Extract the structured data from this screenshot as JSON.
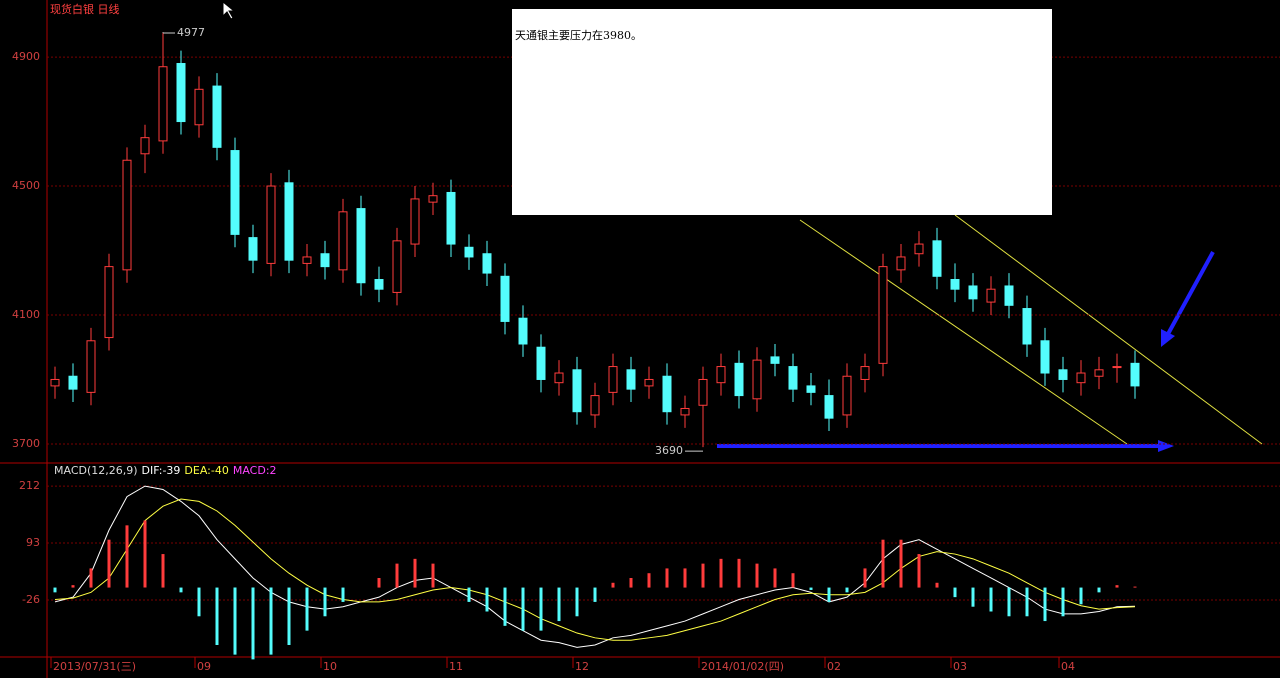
{
  "chart_data": [
    {
      "type": "candlestick",
      "title": "现货白银  日线",
      "categories": [
        "2013/07/31(三)",
        null,
        null,
        null,
        null,
        null,
        null,
        null,
        "09",
        null,
        null,
        null,
        null,
        null,
        null,
        "10",
        null,
        null,
        null,
        null,
        null,
        null,
        "11",
        null,
        null,
        null,
        null,
        null,
        null,
        "12",
        null,
        null,
        null,
        null,
        null,
        null,
        "2014/01/02(四)",
        null,
        null,
        null,
        null,
        null,
        null,
        "02",
        null,
        null,
        null,
        null,
        null,
        null,
        "03",
        null,
        null,
        null,
        null,
        null,
        "04",
        null,
        null,
        null,
        null
      ],
      "open": [
        3880,
        3910,
        3860,
        4030,
        4240,
        4600,
        4640,
        4880,
        4690,
        4810,
        4610,
        4340,
        4260,
        4510,
        4260,
        4290,
        4240,
        4430,
        4210,
        4170,
        4320,
        4450,
        4480,
        4310,
        4290,
        4220,
        4090,
        4000,
        3890,
        3930,
        3790,
        3860,
        3930,
        3880,
        3910,
        3790,
        3820,
        3890,
        3950,
        3840,
        3970,
        3940,
        3880,
        3850,
        3790,
        3900,
        3950,
        4240,
        4290,
        4330,
        4210,
        4190,
        4140,
        4190,
        4120,
        4020,
        3930,
        3890,
        3910,
        3940,
        3950
      ],
      "high": [
        3940,
        3950,
        4060,
        4290,
        4620,
        4690,
        4977,
        4920,
        4840,
        4850,
        4650,
        4380,
        4540,
        4550,
        4320,
        4330,
        4460,
        4470,
        4250,
        4370,
        4500,
        4510,
        4520,
        4350,
        4330,
        4260,
        4130,
        4040,
        3960,
        3970,
        3890,
        3980,
        3970,
        3940,
        3950,
        3850,
        3940,
        3980,
        3990,
        4000,
        4010,
        3980,
        3920,
        3900,
        3950,
        3980,
        4290,
        4320,
        4360,
        4370,
        4260,
        4230,
        4220,
        4230,
        4160,
        4060,
        3970,
        3960,
        3970,
        3980,
        3990
      ],
      "low": [
        3840,
        3830,
        3820,
        3990,
        4200,
        4540,
        4600,
        4660,
        4650,
        4580,
        4310,
        4230,
        4220,
        4230,
        4220,
        4210,
        4200,
        4160,
        4140,
        4130,
        4280,
        4410,
        4280,
        4240,
        4190,
        4040,
        3970,
        3860,
        3850,
        3760,
        3750,
        3820,
        3830,
        3840,
        3760,
        3750,
        3690,
        3850,
        3810,
        3800,
        3910,
        3830,
        3820,
        3740,
        3750,
        3860,
        3910,
        4200,
        4250,
        4180,
        4140,
        4110,
        4100,
        4090,
        3970,
        3880,
        3860,
        3850,
        3870,
        3890,
        3840
      ],
      "close": [
        3900,
        3870,
        4020,
        4250,
        4580,
        4650,
        4870,
        4700,
        4800,
        4620,
        4350,
        4270,
        4500,
        4270,
        4280,
        4250,
        4420,
        4200,
        4180,
        4330,
        4460,
        4470,
        4320,
        4280,
        4230,
        4080,
        4010,
        3900,
        3920,
        3800,
        3850,
        3940,
        3870,
        3900,
        3800,
        3810,
        3900,
        3940,
        3850,
        3960,
        3950,
        3870,
        3860,
        3780,
        3910,
        3940,
        4250,
        4280,
        4320,
        4220,
        4180,
        4150,
        4180,
        4130,
        4010,
        3920,
        3900,
        3920,
        3930,
        3940,
        3880
      ],
      "up_color": "#ff3c3c",
      "down_color": "#54fcfc",
      "ylim": [
        3644,
        5077
      ],
      "yticks": [
        3700,
        4100,
        4500,
        4900
      ],
      "grid": true,
      "note": "天通银主要压力在3980。"
    },
    {
      "type": "macd",
      "title": "MACD(12,26,9)",
      "ylim": [
        -143,
        254
      ],
      "yticks": [
        -26,
        93,
        212
      ],
      "grid": true,
      "series": [
        {
          "name": "DIF",
          "legend": "DIF:-39",
          "color": "#ffffff",
          "values": [
            -30,
            -20,
            30,
            120,
            190,
            212,
            205,
            180,
            150,
            100,
            60,
            20,
            -10,
            -30,
            -40,
            -45,
            -40,
            -30,
            -20,
            0,
            15,
            20,
            0,
            -20,
            -40,
            -70,
            -90,
            -110,
            -115,
            -125,
            -120,
            -105,
            -100,
            -90,
            -80,
            -70,
            -55,
            -40,
            -25,
            -15,
            -5,
            0,
            -10,
            -30,
            -20,
            10,
            60,
            90,
            100,
            80,
            60,
            40,
            20,
            0,
            -20,
            -45,
            -55,
            -55,
            -50,
            -40,
            -39
          ]
        },
        {
          "name": "DEA",
          "legend": "DEA:-40",
          "color": "#ffff44",
          "values": [
            -25,
            -22,
            -10,
            20,
            80,
            140,
            170,
            185,
            180,
            160,
            130,
            95,
            60,
            30,
            5,
            -15,
            -25,
            -30,
            -30,
            -25,
            -15,
            -5,
            0,
            -5,
            -15,
            -30,
            -45,
            -65,
            -80,
            -95,
            -105,
            -110,
            -110,
            -105,
            -100,
            -90,
            -80,
            -70,
            -55,
            -40,
            -25,
            -15,
            -12,
            -15,
            -15,
            -10,
            10,
            40,
            65,
            75,
            70,
            60,
            45,
            30,
            10,
            -10,
            -25,
            -38,
            -45,
            -42,
            -40
          ]
        },
        {
          "name": "MACD",
          "legend": "MACD:2",
          "color": "#ff44ff",
          "up_color": "#ff3c3c",
          "down_color": "#54fcfc",
          "values": [
            -10,
            5,
            40,
            100,
            130,
            140,
            70,
            -10,
            -60,
            -120,
            -140,
            -150,
            -140,
            -120,
            -90,
            -60,
            -30,
            0,
            20,
            50,
            60,
            50,
            0,
            -30,
            -50,
            -80,
            -90,
            -90,
            -70,
            -60,
            -30,
            10,
            20,
            30,
            40,
            40,
            50,
            60,
            60,
            50,
            40,
            30,
            -5,
            -30,
            -10,
            40,
            100,
            100,
            70,
            10,
            -20,
            -40,
            -50,
            -60,
            -60,
            -70,
            -60,
            -35,
            -10,
            5,
            2
          ]
        }
      ]
    }
  ]
}
